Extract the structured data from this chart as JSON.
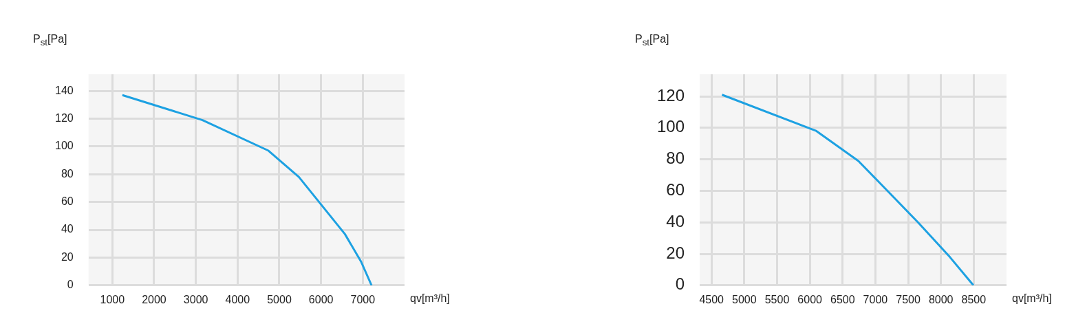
{
  "chart_data": [
    {
      "type": "line",
      "xlabel": "qv[m³/h]",
      "ylabel": "P$_{st}$[Pa]",
      "grid": true,
      "marker": "none",
      "line_style": "solid",
      "legend": false,
      "x": [
        1240,
        3160,
        4740,
        5470,
        6570,
        6960,
        7210
      ],
      "series": [
        {
          "color": "#1da1e2",
          "values": [
            137,
            119,
            97,
            78,
            37,
            17,
            0
          ]
        }
      ],
      "xlim": [
        430,
        8000
      ],
      "ylim": [
        0,
        152
      ],
      "xticks": [
        1000,
        2000,
        3000,
        4000,
        5000,
        6000,
        7000
      ],
      "yticks": [
        0,
        20,
        40,
        60,
        80,
        100,
        120,
        140
      ]
    },
    {
      "type": "line",
      "xlabel": "qv[m³/h]",
      "ylabel": "P$_{st}$[Pa]",
      "grid": true,
      "marker": "none",
      "line_style": "solid",
      "legend": false,
      "x": [
        4660,
        6100,
        6740,
        7650,
        8135,
        8495
      ],
      "series": [
        {
          "color": "#1da1e2",
          "values": [
            121,
            98,
            79,
            40,
            18,
            0
          ]
        }
      ],
      "xlim": [
        4320,
        9000
      ],
      "ylim": [
        0,
        134
      ],
      "xticks": [
        4500,
        5000,
        5500,
        6000,
        6500,
        7000,
        7500,
        8000,
        8500
      ],
      "yticks": [
        0,
        20,
        40,
        60,
        80,
        100,
        120
      ]
    }
  ]
}
